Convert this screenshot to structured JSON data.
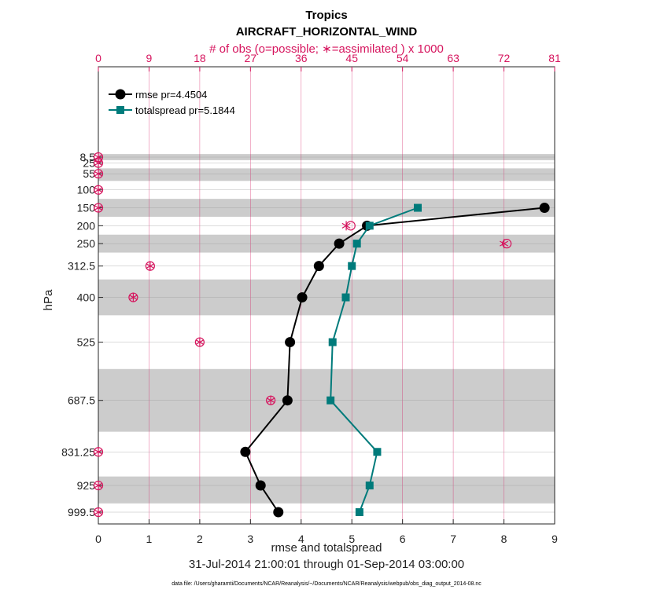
{
  "chart_data": {
    "type": "line",
    "title": "Tropics",
    "subtitle": "AIRCRAFT_HORIZONTAL_WIND",
    "top_axis_label": "# of obs (o=possible; ∗=assimilated ) x 1000",
    "top_ticks": [
      "0",
      "9",
      "18",
      "27",
      "36",
      "45",
      "54",
      "63",
      "72",
      "81"
    ],
    "top_range": [
      0,
      81
    ],
    "xlabel": "rmse and totalspread",
    "x_ticks": [
      "0",
      "1",
      "2",
      "3",
      "4",
      "5",
      "6",
      "7",
      "8",
      "9"
    ],
    "xlim": [
      0,
      9
    ],
    "ylabel": "hPa",
    "levels": [
      8.5,
      25,
      55,
      100,
      150,
      200,
      250,
      312.5,
      400,
      525,
      687.5,
      831.25,
      925,
      999.5
    ],
    "level_labels": [
      "8.5",
      "25",
      "55",
      "100",
      "150",
      "200",
      "250",
      "312.5",
      "400",
      "525",
      "687.5",
      "831.25",
      "925",
      "999.5"
    ],
    "bands": [
      [
        0,
        17
      ],
      [
        40,
        75
      ],
      [
        125,
        175
      ],
      [
        225,
        275
      ],
      [
        350,
        450
      ],
      [
        600,
        775
      ],
      [
        900,
        975
      ]
    ],
    "series": [
      {
        "name": "rmse pr=4.4504",
        "color": "#000000",
        "marker": "circle",
        "points": [
          [
            8.8,
            150
          ],
          [
            5.3,
            200
          ],
          [
            4.75,
            250
          ],
          [
            4.35,
            312.5
          ],
          [
            4.02,
            400
          ],
          [
            3.78,
            525
          ],
          [
            3.73,
            687.5
          ],
          [
            2.9,
            831.25
          ],
          [
            3.2,
            925
          ],
          [
            3.55,
            999.5
          ]
        ]
      },
      {
        "name": "totalspread pr=5.1844",
        "color": "#007b7b",
        "marker": "square",
        "points": [
          [
            6.3,
            150
          ],
          [
            5.35,
            200
          ],
          [
            5.1,
            250
          ],
          [
            5.0,
            312.5
          ],
          [
            4.88,
            400
          ],
          [
            4.62,
            525
          ],
          [
            4.58,
            687.5
          ],
          [
            5.5,
            831.25
          ],
          [
            5.35,
            925
          ],
          [
            5.15,
            999.5
          ]
        ]
      }
    ],
    "obs_possible": [
      [
        0,
        8.5
      ],
      [
        0,
        25
      ],
      [
        0,
        55
      ],
      [
        0,
        100
      ],
      [
        0,
        150
      ],
      [
        44.8,
        200
      ],
      [
        72.5,
        250
      ],
      [
        9.2,
        312.5
      ],
      [
        6.2,
        400
      ],
      [
        18.0,
        525
      ],
      [
        30.6,
        687.5
      ],
      [
        0,
        831.25
      ],
      [
        0,
        925
      ],
      [
        0,
        999.5
      ]
    ],
    "obs_assimilated": [
      [
        0,
        8.5
      ],
      [
        0,
        25
      ],
      [
        0,
        55
      ],
      [
        0,
        100
      ],
      [
        0,
        150
      ],
      [
        44.0,
        200
      ],
      [
        72.0,
        250
      ],
      [
        9.2,
        312.5
      ],
      [
        6.2,
        400
      ],
      [
        18.0,
        525
      ],
      [
        30.6,
        687.5
      ],
      [
        0,
        831.25
      ],
      [
        0,
        925
      ],
      [
        0,
        999.5
      ]
    ],
    "grid": true,
    "legend": "top-left",
    "obs_color": "#d6155e",
    "band_color": "#cccccc",
    "date_range": "31-Jul-2014 21:00:01 through 01-Sep-2014 03:00:00",
    "footnote": "data file: /Users/gharamti/Documents/NCAR/Reanalysis/~/Documents/NCAR/Reanalysis/webpub/obs_diag_output_2014-08.nc"
  }
}
